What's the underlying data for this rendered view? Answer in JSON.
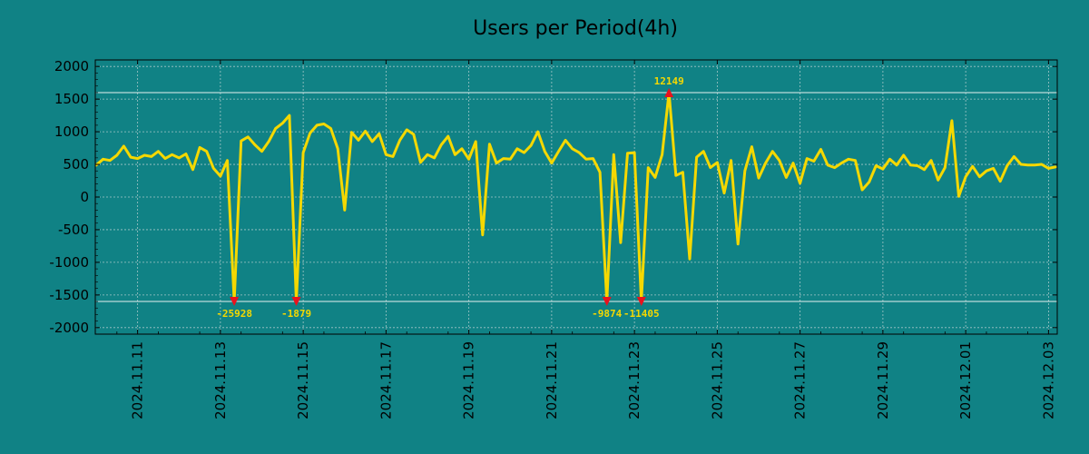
{
  "chart_data": {
    "type": "line",
    "title": "Users per Period(4h)",
    "xlabel": "",
    "ylabel": "",
    "ylim": [
      -2100,
      2100
    ],
    "yticks": [
      2000,
      1500,
      1000,
      500,
      0,
      -500,
      -1000,
      -1500,
      -2000
    ],
    "xticks": [
      {
        "index": 6,
        "label": "2024.11.11"
      },
      {
        "index": 18,
        "label": "2024.11.13"
      },
      {
        "index": 30,
        "label": "2024.11.15"
      },
      {
        "index": 42,
        "label": "2024.11.17"
      },
      {
        "index": 54,
        "label": "2024.11.19"
      },
      {
        "index": 66,
        "label": "2024.11.21"
      },
      {
        "index": 78,
        "label": "2024.11.23"
      },
      {
        "index": 90,
        "label": "2024.11.25"
      },
      {
        "index": 102,
        "label": "2024.11.27"
      },
      {
        "index": 114,
        "label": "2024.11.29"
      },
      {
        "index": 126,
        "label": "2024.12.01"
      },
      {
        "index": 138,
        "label": "2024.12.03"
      }
    ],
    "grid": true,
    "clip_lines": {
      "upper": 1600,
      "lower": -1600
    },
    "series": [
      {
        "name": "Users",
        "color": "#f5d800",
        "values": [
          490,
          580,
          560,
          640,
          780,
          610,
          590,
          640,
          620,
          700,
          590,
          650,
          600,
          660,
          420,
          760,
          700,
          440,
          320,
          560,
          -1600,
          860,
          920,
          800,
          700,
          850,
          1050,
          1130,
          1250,
          -1600,
          680,
          980,
          1100,
          1120,
          1050,
          740,
          -200,
          990,
          870,
          1010,
          850,
          970,
          650,
          620,
          870,
          1030,
          960,
          530,
          650,
          600,
          800,
          930,
          650,
          740,
          580,
          850,
          -580,
          810,
          520,
          590,
          580,
          740,
          680,
          790,
          1000,
          700,
          520,
          700,
          870,
          740,
          680,
          580,
          590,
          380,
          -1600,
          650,
          -700,
          670,
          680,
          -1600,
          450,
          300,
          650,
          1600,
          330,
          380,
          -950,
          610,
          700,
          450,
          530,
          60,
          560,
          -720,
          400,
          770,
          290,
          520,
          700,
          560,
          300,
          520,
          210,
          590,
          550,
          730,
          490,
          450,
          520,
          580,
          560,
          110,
          230,
          480,
          430,
          580,
          490,
          640,
          490,
          480,
          420,
          560,
          260,
          450,
          1170,
          10,
          310,
          470,
          310,
          400,
          440,
          240,
          480,
          620,
          500,
          490,
          490,
          500,
          440,
          460
        ]
      }
    ],
    "annotations": [
      {
        "index": 20,
        "label": "-25928",
        "side": "bottom"
      },
      {
        "index": 29,
        "label": "-1879",
        "side": "bottom"
      },
      {
        "index": 74,
        "label": "-9874",
        "side": "bottom"
      },
      {
        "index": 79,
        "label": "-11405",
        "side": "bottom"
      },
      {
        "index": 83,
        "label": "12149",
        "side": "top"
      }
    ],
    "colors": {
      "background": "#108285",
      "line": "#f5d800",
      "marker": "#e8121e",
      "annotation_text": "#f5d800",
      "grid": "#c8d8d8",
      "clip_line": "#e6f0f0"
    }
  }
}
